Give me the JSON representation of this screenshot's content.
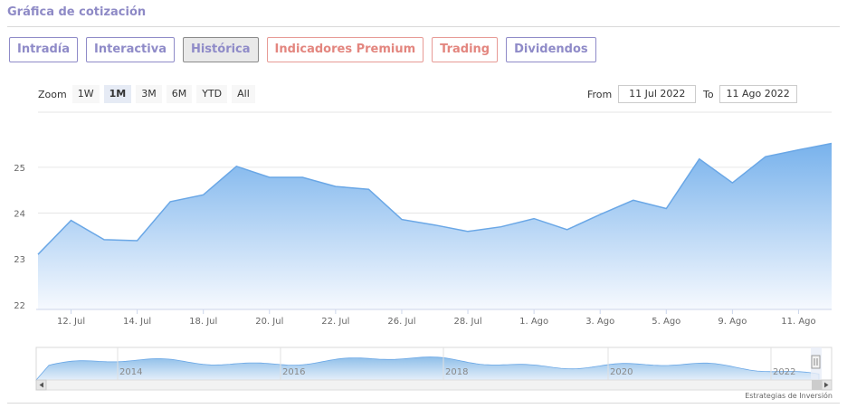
{
  "title": "Gráfica de cotización",
  "tabs": [
    {
      "label": "Intradía",
      "active": false,
      "accent": "#8f8bc8"
    },
    {
      "label": "Interactiva",
      "active": false,
      "accent": "#8f8bc8"
    },
    {
      "label": "Histórica",
      "active": true,
      "accent": "#8f8bc8"
    },
    {
      "label": "Indicadores Premium",
      "active": false,
      "accent": "#e3867f"
    },
    {
      "label": "Trading",
      "active": false,
      "accent": "#e3867f"
    },
    {
      "label": "Dividendos",
      "active": false,
      "accent": "#8f8bc8"
    }
  ],
  "zoom": {
    "label": "Zoom",
    "buttons": [
      "1W",
      "1M",
      "3M",
      "6M",
      "YTD",
      "All"
    ],
    "selected": "1M"
  },
  "range": {
    "from_label": "From",
    "from_value": "11 Jul 2022",
    "to_label": "To",
    "to_value": "11 Ago 2022"
  },
  "credit": "Estrategias de Inversión",
  "colors": {
    "line": "#6aa7e6",
    "fill_top": "#78b2ec",
    "fill_bottom": "#f6f9fe"
  },
  "chart_data": {
    "type": "area",
    "title": "",
    "xlabel": "",
    "ylabel": "",
    "ylim": [
      21.9,
      26.2
    ],
    "grid": true,
    "yticks": [
      22,
      23,
      24,
      25
    ],
    "x_ticks": [
      "12. Jul",
      "14. Jul",
      "18. Jul",
      "20. Jul",
      "22. Jul",
      "26. Jul",
      "28. Jul",
      "1. Ago",
      "3. Ago",
      "5. Ago",
      "9. Ago",
      "11. Ago"
    ],
    "x": [
      "11. Jul",
      "12. Jul",
      "13. Jul",
      "14. Jul",
      "15. Jul",
      "18. Jul",
      "19. Jul",
      "20. Jul",
      "21. Jul",
      "22. Jul",
      "25. Jul",
      "26. Jul",
      "27. Jul",
      "28. Jul",
      "29. Jul",
      "1. Ago",
      "2. Ago",
      "3. Ago",
      "4. Ago",
      "5. Ago",
      "8. Ago",
      "9. Ago",
      "10. Ago",
      "11. Ago",
      "12. Ago"
    ],
    "series": [
      {
        "values": [
          23.1,
          23.84,
          23.42,
          23.4,
          24.25,
          24.4,
          25.02,
          24.78,
          24.78,
          24.58,
          24.52,
          23.86,
          23.74,
          23.6,
          23.7,
          23.88,
          23.64,
          23.97,
          24.28,
          24.1,
          25.18,
          24.66,
          25.23,
          25.38,
          25.52
        ]
      }
    ],
    "navigator": {
      "x_ticks": [
        "2014",
        "2016",
        "2018",
        "2020",
        "2022"
      ]
    }
  }
}
